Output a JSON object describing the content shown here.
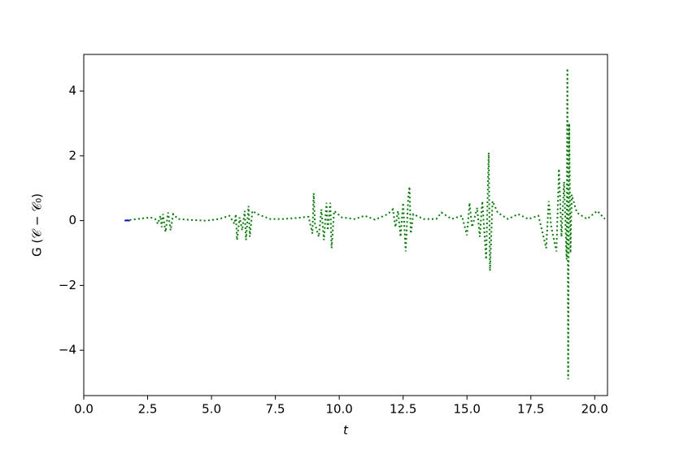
{
  "chart_data": {
    "type": "line",
    "xlabel": "t",
    "ylabel": "G (𝒞 − 𝒞₀)",
    "xlim": [
      0,
      20.5
    ],
    "ylim": [
      -5.4,
      5.13
    ],
    "xticks": [
      {
        "value": 0,
        "label": "0.0"
      },
      {
        "value": 2.5,
        "label": "2.5"
      },
      {
        "value": 5,
        "label": "5.0"
      },
      {
        "value": 7.5,
        "label": "7.5"
      },
      {
        "value": 10,
        "label": "10.0"
      },
      {
        "value": 12.5,
        "label": "12.5"
      },
      {
        "value": 15,
        "label": "15.0"
      },
      {
        "value": 17.5,
        "label": "17.5"
      },
      {
        "value": 20,
        "label": "20.0"
      }
    ],
    "yticks": [
      {
        "value": -4,
        "label": "−4"
      },
      {
        "value": -2,
        "label": "−2"
      },
      0,
      2,
      4
    ],
    "grid": false,
    "series": [
      {
        "color": "#0000ff",
        "linestyle": "solid",
        "x": [
          1.6,
          1.7,
          1.8
        ],
        "values": [
          0.0,
          0.01,
          0.0
        ]
      },
      {
        "color": "#008000",
        "linestyle": "dotted",
        "x": [
          1.8,
          2.2,
          2.6,
          2.8,
          2.9,
          3.0,
          3.05,
          3.1,
          3.2,
          3.3,
          3.4,
          3.5,
          3.7,
          4.2,
          4.8,
          5.3,
          5.7,
          5.9,
          5.95,
          6.0,
          6.1,
          6.2,
          6.3,
          6.35,
          6.45,
          6.5,
          6.6,
          6.8,
          7.3,
          7.8,
          8.3,
          8.8,
          8.95,
          9.0,
          9.05,
          9.2,
          9.3,
          9.4,
          9.5,
          9.55,
          9.65,
          9.7,
          9.8,
          10.1,
          10.6,
          11.0,
          11.4,
          11.9,
          12.1,
          12.2,
          12.3,
          12.4,
          12.5,
          12.6,
          12.7,
          12.75,
          12.8,
          12.9,
          13.3,
          13.8,
          14.0,
          14.4,
          14.8,
          15.0,
          15.1,
          15.2,
          15.4,
          15.5,
          15.6,
          15.75,
          15.85,
          15.9,
          16.0,
          16.2,
          16.6,
          17.0,
          17.4,
          17.8,
          18.1,
          18.2,
          18.3,
          18.5,
          18.6,
          18.7,
          18.8,
          18.9,
          18.93,
          18.96,
          19.0,
          19.05,
          19.1,
          19.3,
          19.7,
          20.1,
          20.4
        ],
        "values": [
          0.02,
          0.06,
          0.1,
          0.05,
          -0.1,
          0.15,
          -0.2,
          0.2,
          -0.35,
          0.25,
          -0.3,
          0.2,
          0.05,
          0.02,
          0.0,
          0.05,
          0.15,
          -0.1,
          0.2,
          -0.6,
          0.1,
          -0.3,
          0.3,
          -0.6,
          0.45,
          -0.5,
          0.3,
          0.2,
          0.05,
          0.05,
          0.08,
          0.12,
          -0.4,
          0.85,
          -0.1,
          -0.5,
          0.35,
          -0.6,
          0.55,
          -0.3,
          0.55,
          -0.85,
          0.3,
          0.1,
          0.05,
          0.15,
          0.03,
          0.2,
          0.35,
          -0.2,
          0.3,
          -0.5,
          0.55,
          -0.95,
          0.7,
          1.05,
          -0.4,
          0.2,
          0.05,
          0.05,
          0.25,
          0.05,
          0.15,
          -0.45,
          0.55,
          -0.2,
          0.4,
          -0.5,
          0.6,
          -1.2,
          2.1,
          -1.55,
          0.6,
          0.25,
          0.05,
          0.2,
          0.05,
          0.15,
          -0.85,
          0.6,
          -0.2,
          -0.95,
          1.6,
          -0.5,
          1.2,
          -1.2,
          4.7,
          -4.9,
          3.0,
          -1.0,
          0.8,
          0.25,
          0.05,
          0.3,
          0.05
        ]
      }
    ]
  }
}
